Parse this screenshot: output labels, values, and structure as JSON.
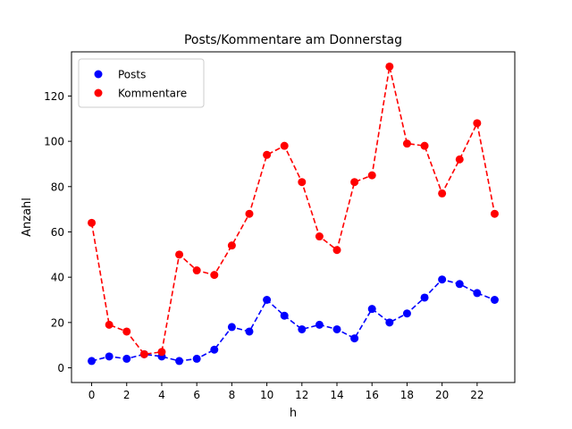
{
  "chart_data": {
    "type": "line",
    "title": "Posts/Kommentare am Donnerstag",
    "xlabel": "h",
    "ylabel": "Anzahl",
    "x": [
      0,
      1,
      2,
      3,
      4,
      5,
      6,
      7,
      8,
      9,
      10,
      11,
      12,
      13,
      14,
      15,
      16,
      17,
      18,
      19,
      20,
      21,
      22,
      23
    ],
    "xlim": [
      -1.15,
      24.15
    ],
    "ylim": [
      -6.5,
      139.5
    ],
    "xticks": [
      0,
      2,
      4,
      6,
      8,
      10,
      12,
      14,
      16,
      18,
      20,
      22
    ],
    "yticks": [
      0,
      20,
      40,
      60,
      80,
      100,
      120
    ],
    "legend_position": "top-left",
    "grid": false,
    "series": [
      {
        "name": "Posts",
        "color": "#0000ff",
        "values": [
          3,
          5,
          4,
          6,
          5,
          3,
          4,
          8,
          18,
          16,
          30,
          23,
          17,
          19,
          17,
          13,
          26,
          20,
          24,
          31,
          39,
          37,
          33,
          30
        ]
      },
      {
        "name": "Kommentare",
        "color": "#ff0000",
        "values": [
          64,
          19,
          16,
          6,
          7,
          50,
          43,
          41,
          54,
          68,
          94,
          98,
          82,
          58,
          52,
          82,
          85,
          133,
          99,
          98,
          77,
          92,
          108,
          68
        ]
      }
    ]
  }
}
